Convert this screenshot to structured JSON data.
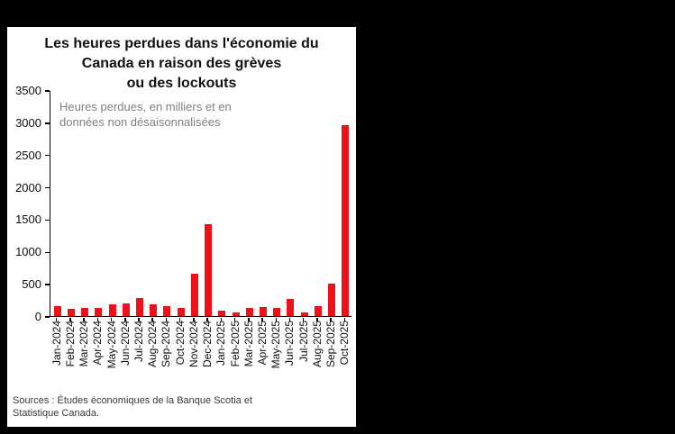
{
  "page": {
    "background_color": "#000000",
    "card_color": "#ffffff"
  },
  "chart": {
    "title_lines": [
      "Les heures perdues dans l'économie du",
      "Canada en raison des grèves",
      "ou des lockouts"
    ],
    "subtitle_lines": [
      "Heures perdues, en milliers et en",
      "données non désaisonnalisées"
    ],
    "source_lines": [
      "Sources : Études économiques de la Banque Scotia et",
      "Statistique Canada."
    ]
  },
  "chart_data": {
    "type": "bar",
    "title": "Les heures perdues dans l'économie du Canada en raison des grèves ou des lockouts",
    "subtitle": "Heures perdues, en milliers et en données non désaisonnalisées",
    "categories": [
      "Jan-2024",
      "Feb-2024",
      "Mar-2024",
      "Apr-2024",
      "May-2024",
      "Jun-2024",
      "Jul-2024",
      "Aug-2024",
      "Sep-2024",
      "Oct-2024",
      "Nov-2024",
      "Dec-2024",
      "Jan-2025",
      "Feb-2025",
      "Mar-2025",
      "Apr-2025",
      "May-2025",
      "Jun-2025",
      "Jul-2025",
      "Aug-2025",
      "Sep-2025",
      "Oct-2025"
    ],
    "values": [
      150,
      110,
      130,
      125,
      180,
      195,
      280,
      180,
      150,
      125,
      655,
      1420,
      85,
      55,
      125,
      140,
      125,
      265,
      55,
      150,
      500,
      2950
    ],
    "xlabel": "",
    "ylabel": "",
    "ylim": [
      0,
      3500
    ],
    "yticks": [
      0,
      500,
      1000,
      1500,
      2000,
      2500,
      3000,
      3500
    ],
    "grid": false,
    "legend": "none",
    "bar_color": "#ec111a",
    "source": "Sources : Études économiques de la Banque Scotia et Statistique Canada."
  }
}
